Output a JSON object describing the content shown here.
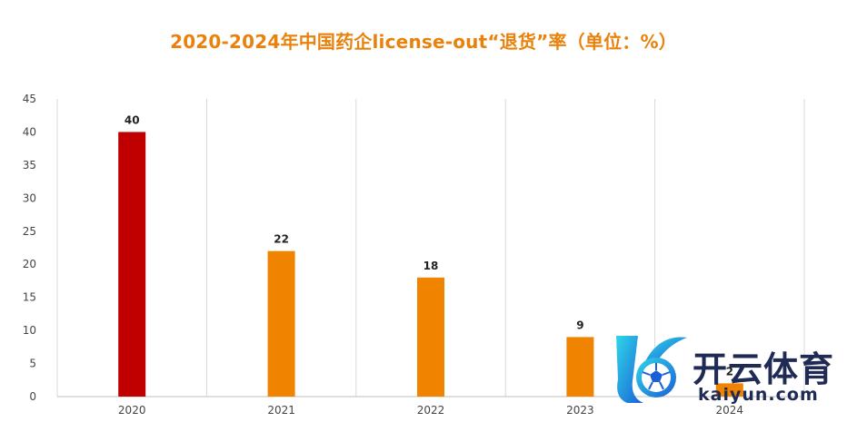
{
  "chart_data": {
    "type": "bar",
    "title": "2020-2024年中国药企license-out“退货”率（单位：%）",
    "categories": [
      "2020",
      "2021",
      "2022",
      "2023",
      "2024"
    ],
    "values": [
      40,
      22,
      18,
      9,
      2
    ],
    "ylim": [
      0,
      45
    ],
    "yticks": [
      0,
      5,
      10,
      15,
      20,
      25,
      30,
      35,
      40,
      45
    ],
    "grid": "vertical",
    "colors": {
      "highlight": "#c00000",
      "default": "#f08300",
      "title": "#e8820c"
    }
  },
  "watermark": {
    "text_cn": "开云体育",
    "text_en": "kaiyun.com",
    "logo_icon": "k-soccer-ball-logo"
  }
}
